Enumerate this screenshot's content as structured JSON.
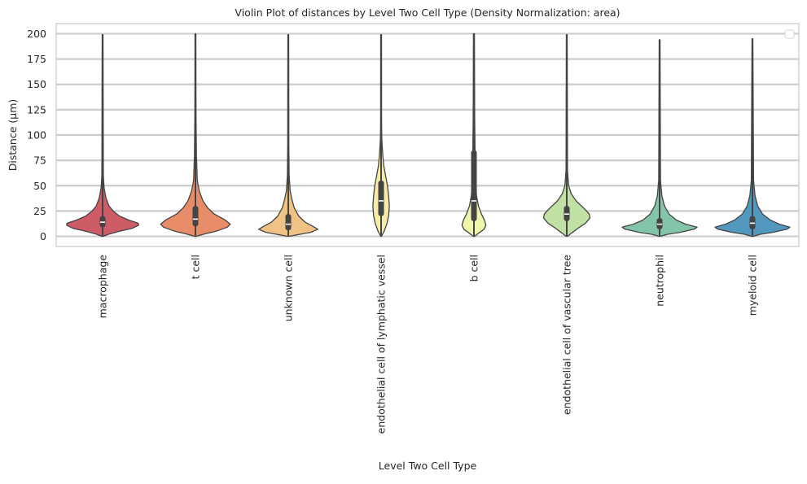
{
  "chart_data": {
    "type": "violin",
    "title": "Violin Plot of distances by Level Two Cell Type (Density Normalization: area)",
    "xlabel": "Level Two Cell Type",
    "ylabel": "Distance (µm)",
    "ylim": [
      -10,
      210
    ],
    "yticks": [
      0,
      25,
      50,
      75,
      100,
      125,
      150,
      175,
      200
    ],
    "ytick_labels": [
      "0",
      "25",
      "50",
      "75",
      "100",
      "125",
      "150",
      "175",
      "200"
    ],
    "grid": true,
    "legend": {
      "placement": "top-right",
      "entries": []
    },
    "categories": [
      "macrophage",
      "t cell",
      "unknown cell",
      "endothelial cell of lymphatic vessel",
      "b cell",
      "endothelial cell of vascular tree",
      "neutrophil",
      "myeloid cell"
    ],
    "series": [
      {
        "name": "macrophage",
        "color": "#cd5c67",
        "min": 0,
        "q1": 9,
        "median": 14,
        "q3": 20,
        "whisker_hi": 38,
        "max": 199,
        "density": [
          [
            0,
            0.02
          ],
          [
            2,
            0.15
          ],
          [
            5,
            0.45
          ],
          [
            8,
            0.8
          ],
          [
            11,
            0.96
          ],
          [
            13,
            0.95
          ],
          [
            16,
            0.7
          ],
          [
            20,
            0.45
          ],
          [
            25,
            0.28
          ],
          [
            30,
            0.17
          ],
          [
            38,
            0.09
          ],
          [
            48,
            0.04
          ],
          [
            60,
            0.02
          ],
          [
            199,
            0.01
          ]
        ]
      },
      {
        "name": "t cell",
        "color": "#e98c69",
        "min": 0,
        "q1": 10,
        "median": 17,
        "q3": 30,
        "whisker_hi": 55,
        "max": 200,
        "density": [
          [
            0,
            0.02
          ],
          [
            2,
            0.2
          ],
          [
            5,
            0.55
          ],
          [
            9,
            0.85
          ],
          [
            12,
            0.93
          ],
          [
            16,
            0.8
          ],
          [
            22,
            0.5
          ],
          [
            28,
            0.33
          ],
          [
            35,
            0.2
          ],
          [
            45,
            0.1
          ],
          [
            55,
            0.05
          ],
          [
            80,
            0.025
          ],
          [
            120,
            0.015
          ],
          [
            200,
            0.01
          ]
        ]
      },
      {
        "name": "unknown cell",
        "color": "#f0c283",
        "min": 0,
        "q1": 6,
        "median": 12,
        "q3": 22,
        "whisker_hi": 42,
        "max": 199,
        "density": [
          [
            0,
            0.02
          ],
          [
            2,
            0.3
          ],
          [
            4,
            0.6
          ],
          [
            7,
            0.79
          ],
          [
            10,
            0.65
          ],
          [
            14,
            0.45
          ],
          [
            20,
            0.28
          ],
          [
            28,
            0.16
          ],
          [
            36,
            0.1
          ],
          [
            45,
            0.05
          ],
          [
            60,
            0.025
          ],
          [
            90,
            0.015
          ],
          [
            199,
            0.01
          ]
        ]
      },
      {
        "name": "endothelial cell of lymphatic vessel",
        "color": "#f7eba8",
        "min": 0,
        "q1": 20,
        "median": 35,
        "q3": 55,
        "whisker_hi": 95,
        "max": 199,
        "density": [
          [
            0,
            0.01
          ],
          [
            5,
            0.08
          ],
          [
            12,
            0.15
          ],
          [
            20,
            0.2
          ],
          [
            30,
            0.22
          ],
          [
            40,
            0.2
          ],
          [
            50,
            0.17
          ],
          [
            60,
            0.12
          ],
          [
            70,
            0.07
          ],
          [
            80,
            0.045
          ],
          [
            95,
            0.02
          ],
          [
            110,
            0.012
          ],
          [
            199,
            0.01
          ]
        ]
      },
      {
        "name": "b cell",
        "color": "#eff5aa",
        "min": 0,
        "q1": 15,
        "median": 35,
        "q3": 85,
        "whisker_hi": 200,
        "max": 200,
        "density": [
          [
            0,
            0.02
          ],
          [
            3,
            0.12
          ],
          [
            7,
            0.27
          ],
          [
            11,
            0.32
          ],
          [
            16,
            0.28
          ],
          [
            22,
            0.2
          ],
          [
            30,
            0.12
          ],
          [
            40,
            0.07
          ],
          [
            55,
            0.04
          ],
          [
            80,
            0.03
          ],
          [
            120,
            0.02
          ],
          [
            200,
            0.012
          ]
        ]
      },
      {
        "name": "endothelial cell of vascular tree",
        "color": "#c1e0a4",
        "min": 0,
        "q1": 15,
        "median": 22,
        "q3": 30,
        "whisker_hi": 45,
        "max": 199,
        "density": [
          [
            0,
            0.02
          ],
          [
            3,
            0.12
          ],
          [
            8,
            0.3
          ],
          [
            13,
            0.5
          ],
          [
            18,
            0.62
          ],
          [
            22,
            0.6
          ],
          [
            28,
            0.45
          ],
          [
            35,
            0.25
          ],
          [
            42,
            0.12
          ],
          [
            50,
            0.05
          ],
          [
            65,
            0.02
          ],
          [
            199,
            0.01
          ]
        ]
      },
      {
        "name": "neutrophil",
        "color": "#84c4a9",
        "min": 0,
        "q1": 7,
        "median": 12,
        "q3": 18,
        "whisker_hi": 32,
        "max": 194,
        "density": [
          [
            0,
            0.02
          ],
          [
            2,
            0.2
          ],
          [
            4,
            0.55
          ],
          [
            7,
            0.92
          ],
          [
            9,
            1.0
          ],
          [
            12,
            0.7
          ],
          [
            16,
            0.45
          ],
          [
            22,
            0.25
          ],
          [
            30,
            0.13
          ],
          [
            40,
            0.06
          ],
          [
            55,
            0.025
          ],
          [
            194,
            0.01
          ]
        ]
      },
      {
        "name": "myeloid cell",
        "color": "#5297bd",
        "min": 0,
        "q1": 7,
        "median": 13,
        "q3": 20,
        "whisker_hi": 34,
        "max": 195,
        "density": [
          [
            0,
            0.02
          ],
          [
            2,
            0.2
          ],
          [
            4,
            0.55
          ],
          [
            7,
            0.92
          ],
          [
            9,
            1.0
          ],
          [
            12,
            0.72
          ],
          [
            16,
            0.48
          ],
          [
            22,
            0.27
          ],
          [
            30,
            0.14
          ],
          [
            40,
            0.07
          ],
          [
            55,
            0.03
          ],
          [
            195,
            0.01
          ]
        ]
      }
    ]
  }
}
